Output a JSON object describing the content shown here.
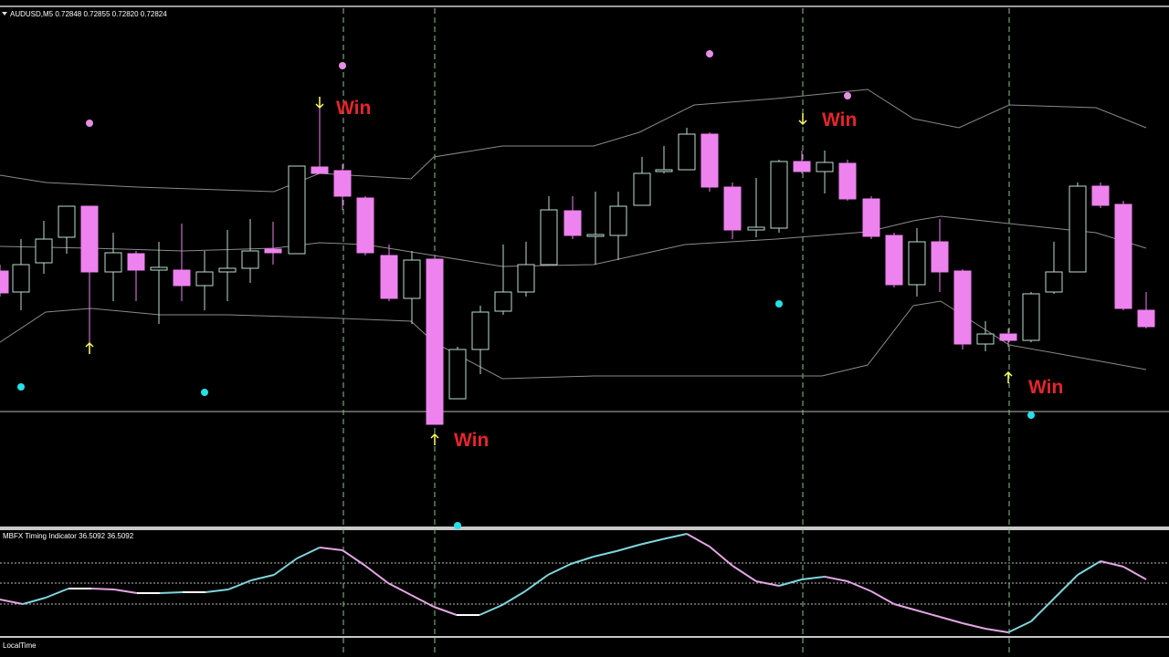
{
  "header": {
    "symbol_info": "AUDUSD,M5  0.72848 0.72855 0.72820 0.72824"
  },
  "indicator": {
    "label": "MBFX Timing Indicator 36.5092 36.5092"
  },
  "annotations": [
    "Win",
    "Win",
    "Win",
    "Win"
  ],
  "footer": {
    "label": "LocalTime"
  }
}
